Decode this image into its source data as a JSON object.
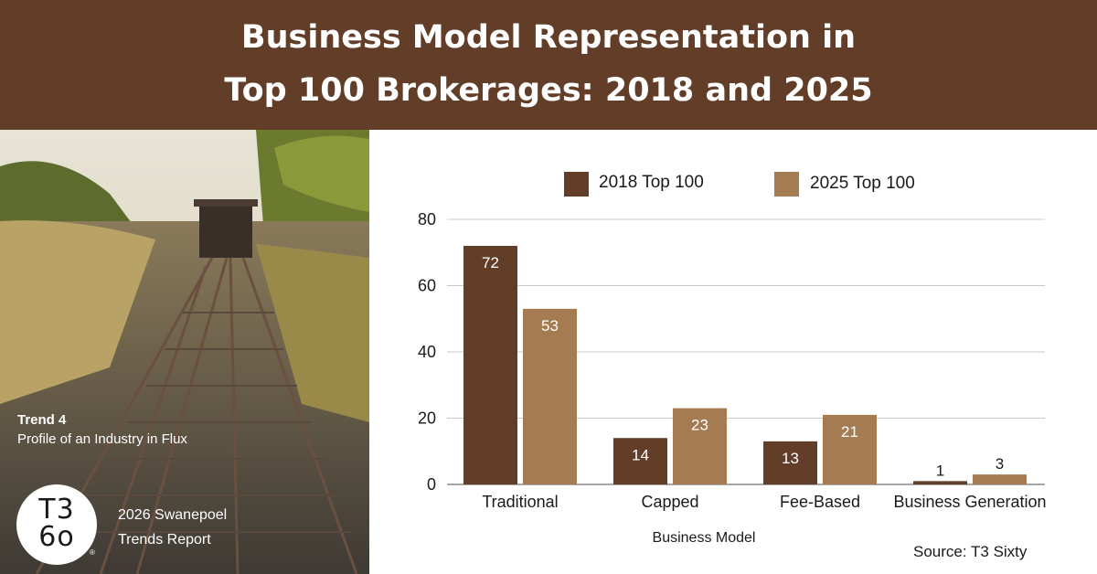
{
  "header": {
    "title_line1": "Business Model Representation in",
    "title_line2": "Top 100 Brokerages: 2018 and 2025"
  },
  "sidebar": {
    "trend_label": "Trend 4",
    "trend_subtitle": "Profile of an Industry in Flux",
    "logo_top": "T3",
    "logo_bottom": "6o",
    "registered_mark": "®",
    "report_line1": "2026 Swanepoel",
    "report_line2": "Trends Report"
  },
  "colors": {
    "header": "#623d28",
    "series_2018": "#623d28",
    "series_2025": "#a57b52"
  },
  "chart_data": {
    "type": "bar",
    "title": "Business Model Representation in Top 100 Brokerages: 2018 and 2025",
    "xlabel": "Business Model",
    "ylabel": "",
    "categories": [
      "Traditional",
      "Capped",
      "Fee-Based",
      "Business Generation"
    ],
    "series": [
      {
        "name": "2018 Top 100",
        "values": [
          72,
          14,
          13,
          1
        ]
      },
      {
        "name": "2025 Top 100",
        "values": [
          53,
          23,
          21,
          3
        ]
      }
    ],
    "ylim": [
      0,
      80
    ],
    "yticks": [
      0,
      20,
      40,
      60,
      80
    ],
    "grid": true,
    "legend": "top",
    "source": "Source: T3 Sixty"
  }
}
